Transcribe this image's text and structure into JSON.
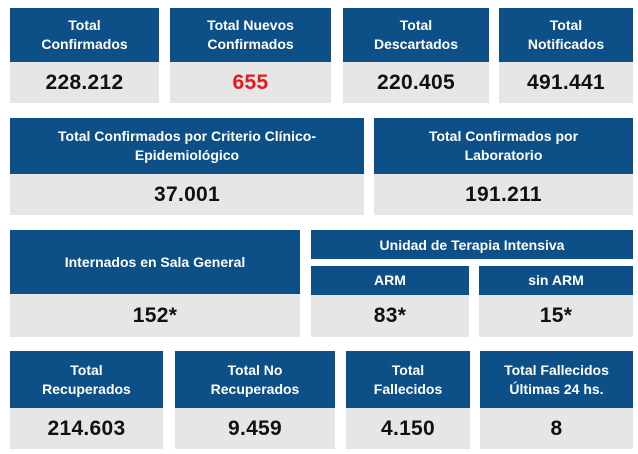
{
  "row1": [
    {
      "title": "Total\nConfirmados",
      "value": "228.212"
    },
    {
      "title": "Total Nuevos\nConfirmados",
      "value": "655"
    },
    {
      "title": "Total\nDescartados",
      "value": "220.405"
    },
    {
      "title": "Total\nNotificados",
      "value": "491.441"
    }
  ],
  "row2": [
    {
      "title": "Total Confirmados por Criterio Clínico-\nEpidemiológico",
      "value": "37.001"
    },
    {
      "title": "Total Confirmados por\nLaboratorio",
      "value": "191.211"
    }
  ],
  "row3": {
    "sala_general": {
      "title": "Internados en Sala General",
      "value": "152*"
    },
    "uti_title": "Unidad de Terapia Intensiva",
    "arm": {
      "title": "ARM",
      "value": "83*"
    },
    "sin_arm": {
      "title": "sin ARM",
      "value": "15*"
    }
  },
  "row4": [
    {
      "title": "Total\nRecuperados",
      "value": "214.603"
    },
    {
      "title": "Total No\nRecuperados",
      "value": "9.459"
    },
    {
      "title": "Total\nFallecidos",
      "value": "4.150"
    },
    {
      "title": "Total Fallecidos\nÚltimas 24 hs.",
      "value": "8"
    }
  ],
  "colors": {
    "header": "#0d4f87",
    "value_bg": "#e6e6e6",
    "highlight": "#e8191c"
  }
}
